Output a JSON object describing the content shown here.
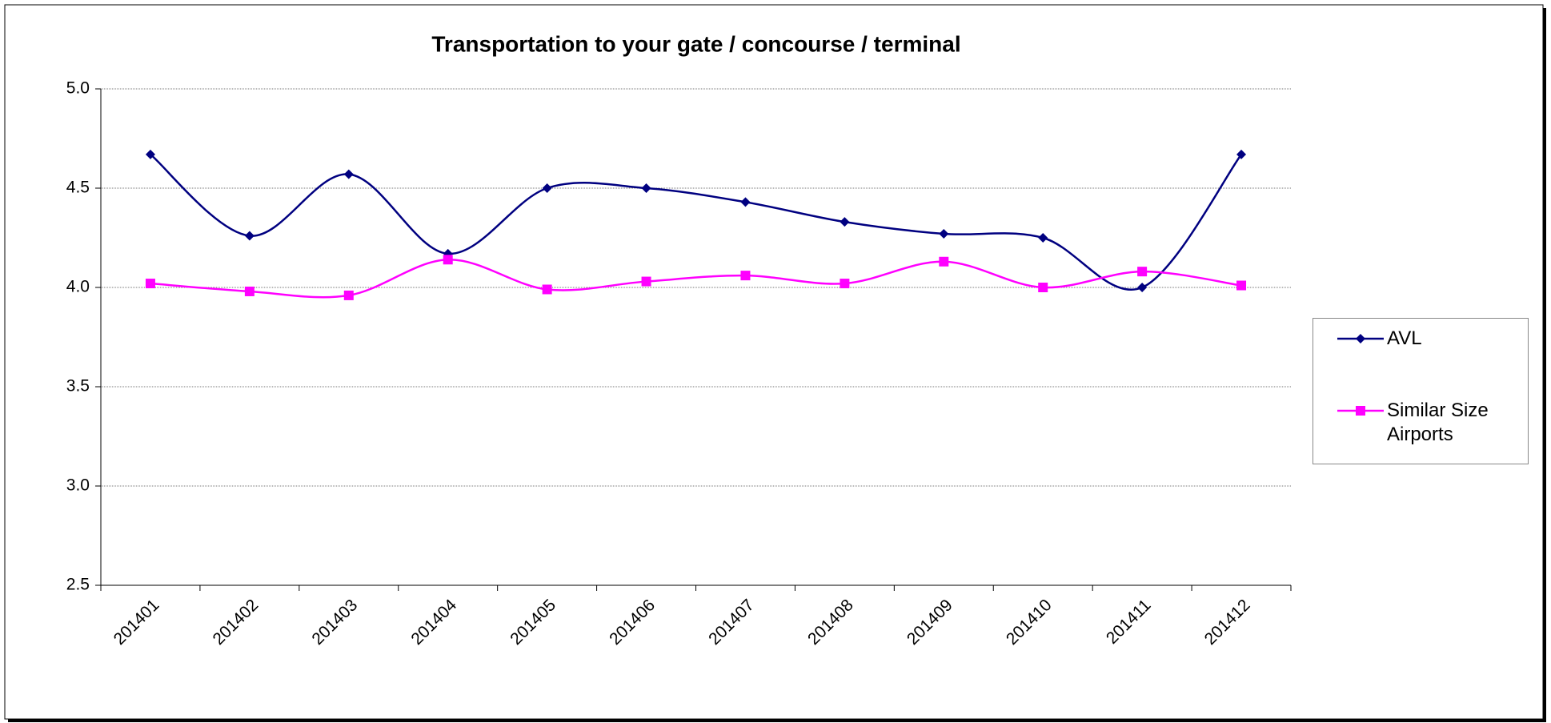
{
  "chart_data": {
    "type": "line",
    "title": "Transportation to your gate / concourse / terminal",
    "categories": [
      "201401",
      "201402",
      "201403",
      "201404",
      "201405",
      "201406",
      "201407",
      "201408",
      "201409",
      "201410",
      "201411",
      "201412"
    ],
    "series": [
      {
        "name": "AVL",
        "color": "#000080",
        "marker": "diamond",
        "values": [
          4.67,
          4.26,
          4.57,
          4.17,
          4.5,
          4.5,
          4.43,
          4.33,
          4.27,
          4.25,
          4.0,
          4.67
        ]
      },
      {
        "name": "Similar Size Airports",
        "color": "#ff00ff",
        "marker": "square",
        "values": [
          4.02,
          3.98,
          3.96,
          4.14,
          3.99,
          4.03,
          4.06,
          4.02,
          4.13,
          4.0,
          4.08,
          4.01
        ]
      }
    ],
    "ylim": [
      2.5,
      5.0
    ],
    "yticks": [
      2.5,
      {
        "value": 3,
        "label": "3.0"
      },
      3.5,
      {
        "value": 4,
        "label": "4.0"
      },
      4.5,
      {
        "value": 5,
        "label": "5.0"
      }
    ],
    "grid": true,
    "smooth": true,
    "legend": "right"
  }
}
